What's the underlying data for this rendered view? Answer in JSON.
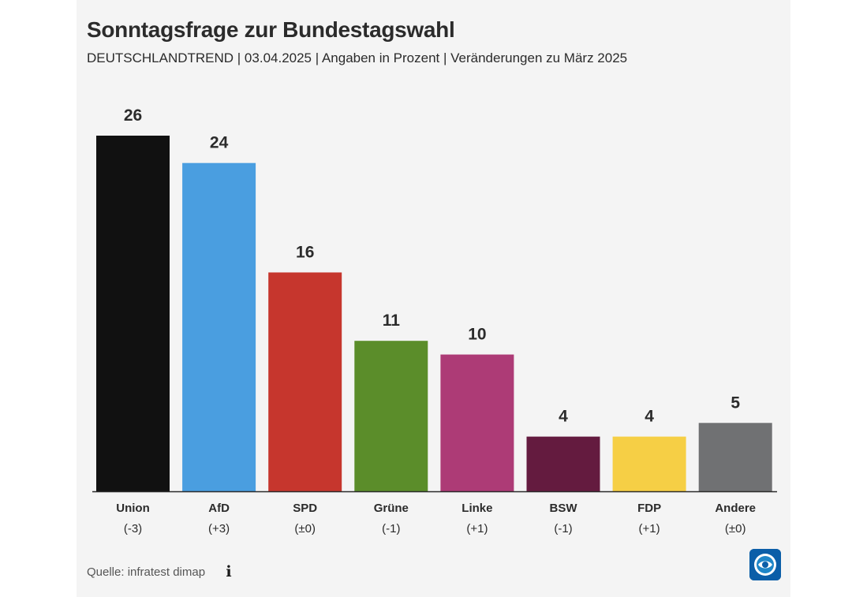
{
  "header": {
    "title": "Sonntagsfrage zur Bundestagswahl",
    "subtitle": "DEUTSCHLANDTREND | 03.04.2025 | Angaben in Prozent | Veränderungen zu März 2025"
  },
  "footer": {
    "source": "Quelle: infratest dimap",
    "info_icon": "info-icon",
    "logo_icon": "tagesschau-logo-icon"
  },
  "chart_data": {
    "type": "bar",
    "title": "Sonntagsfrage zur Bundestagswahl",
    "xlabel": "",
    "ylabel": "",
    "ylim": [
      0,
      26
    ],
    "grid": false,
    "legend": "none",
    "categories": [
      "Union",
      "AfD",
      "SPD",
      "Grüne",
      "Linke",
      "BSW",
      "FDP",
      "Andere"
    ],
    "values": [
      26,
      24,
      16,
      11,
      10,
      4,
      4,
      5
    ],
    "changes": [
      "(-3)",
      "(+3)",
      "(±0)",
      "(-1)",
      "(+1)",
      "(-1)",
      "(+1)",
      "(±0)"
    ],
    "colors": [
      "#111111",
      "#4a9ee0",
      "#c6362d",
      "#5b8d2a",
      "#ad3b76",
      "#641b3f",
      "#f6cf45",
      "#707173"
    ]
  }
}
